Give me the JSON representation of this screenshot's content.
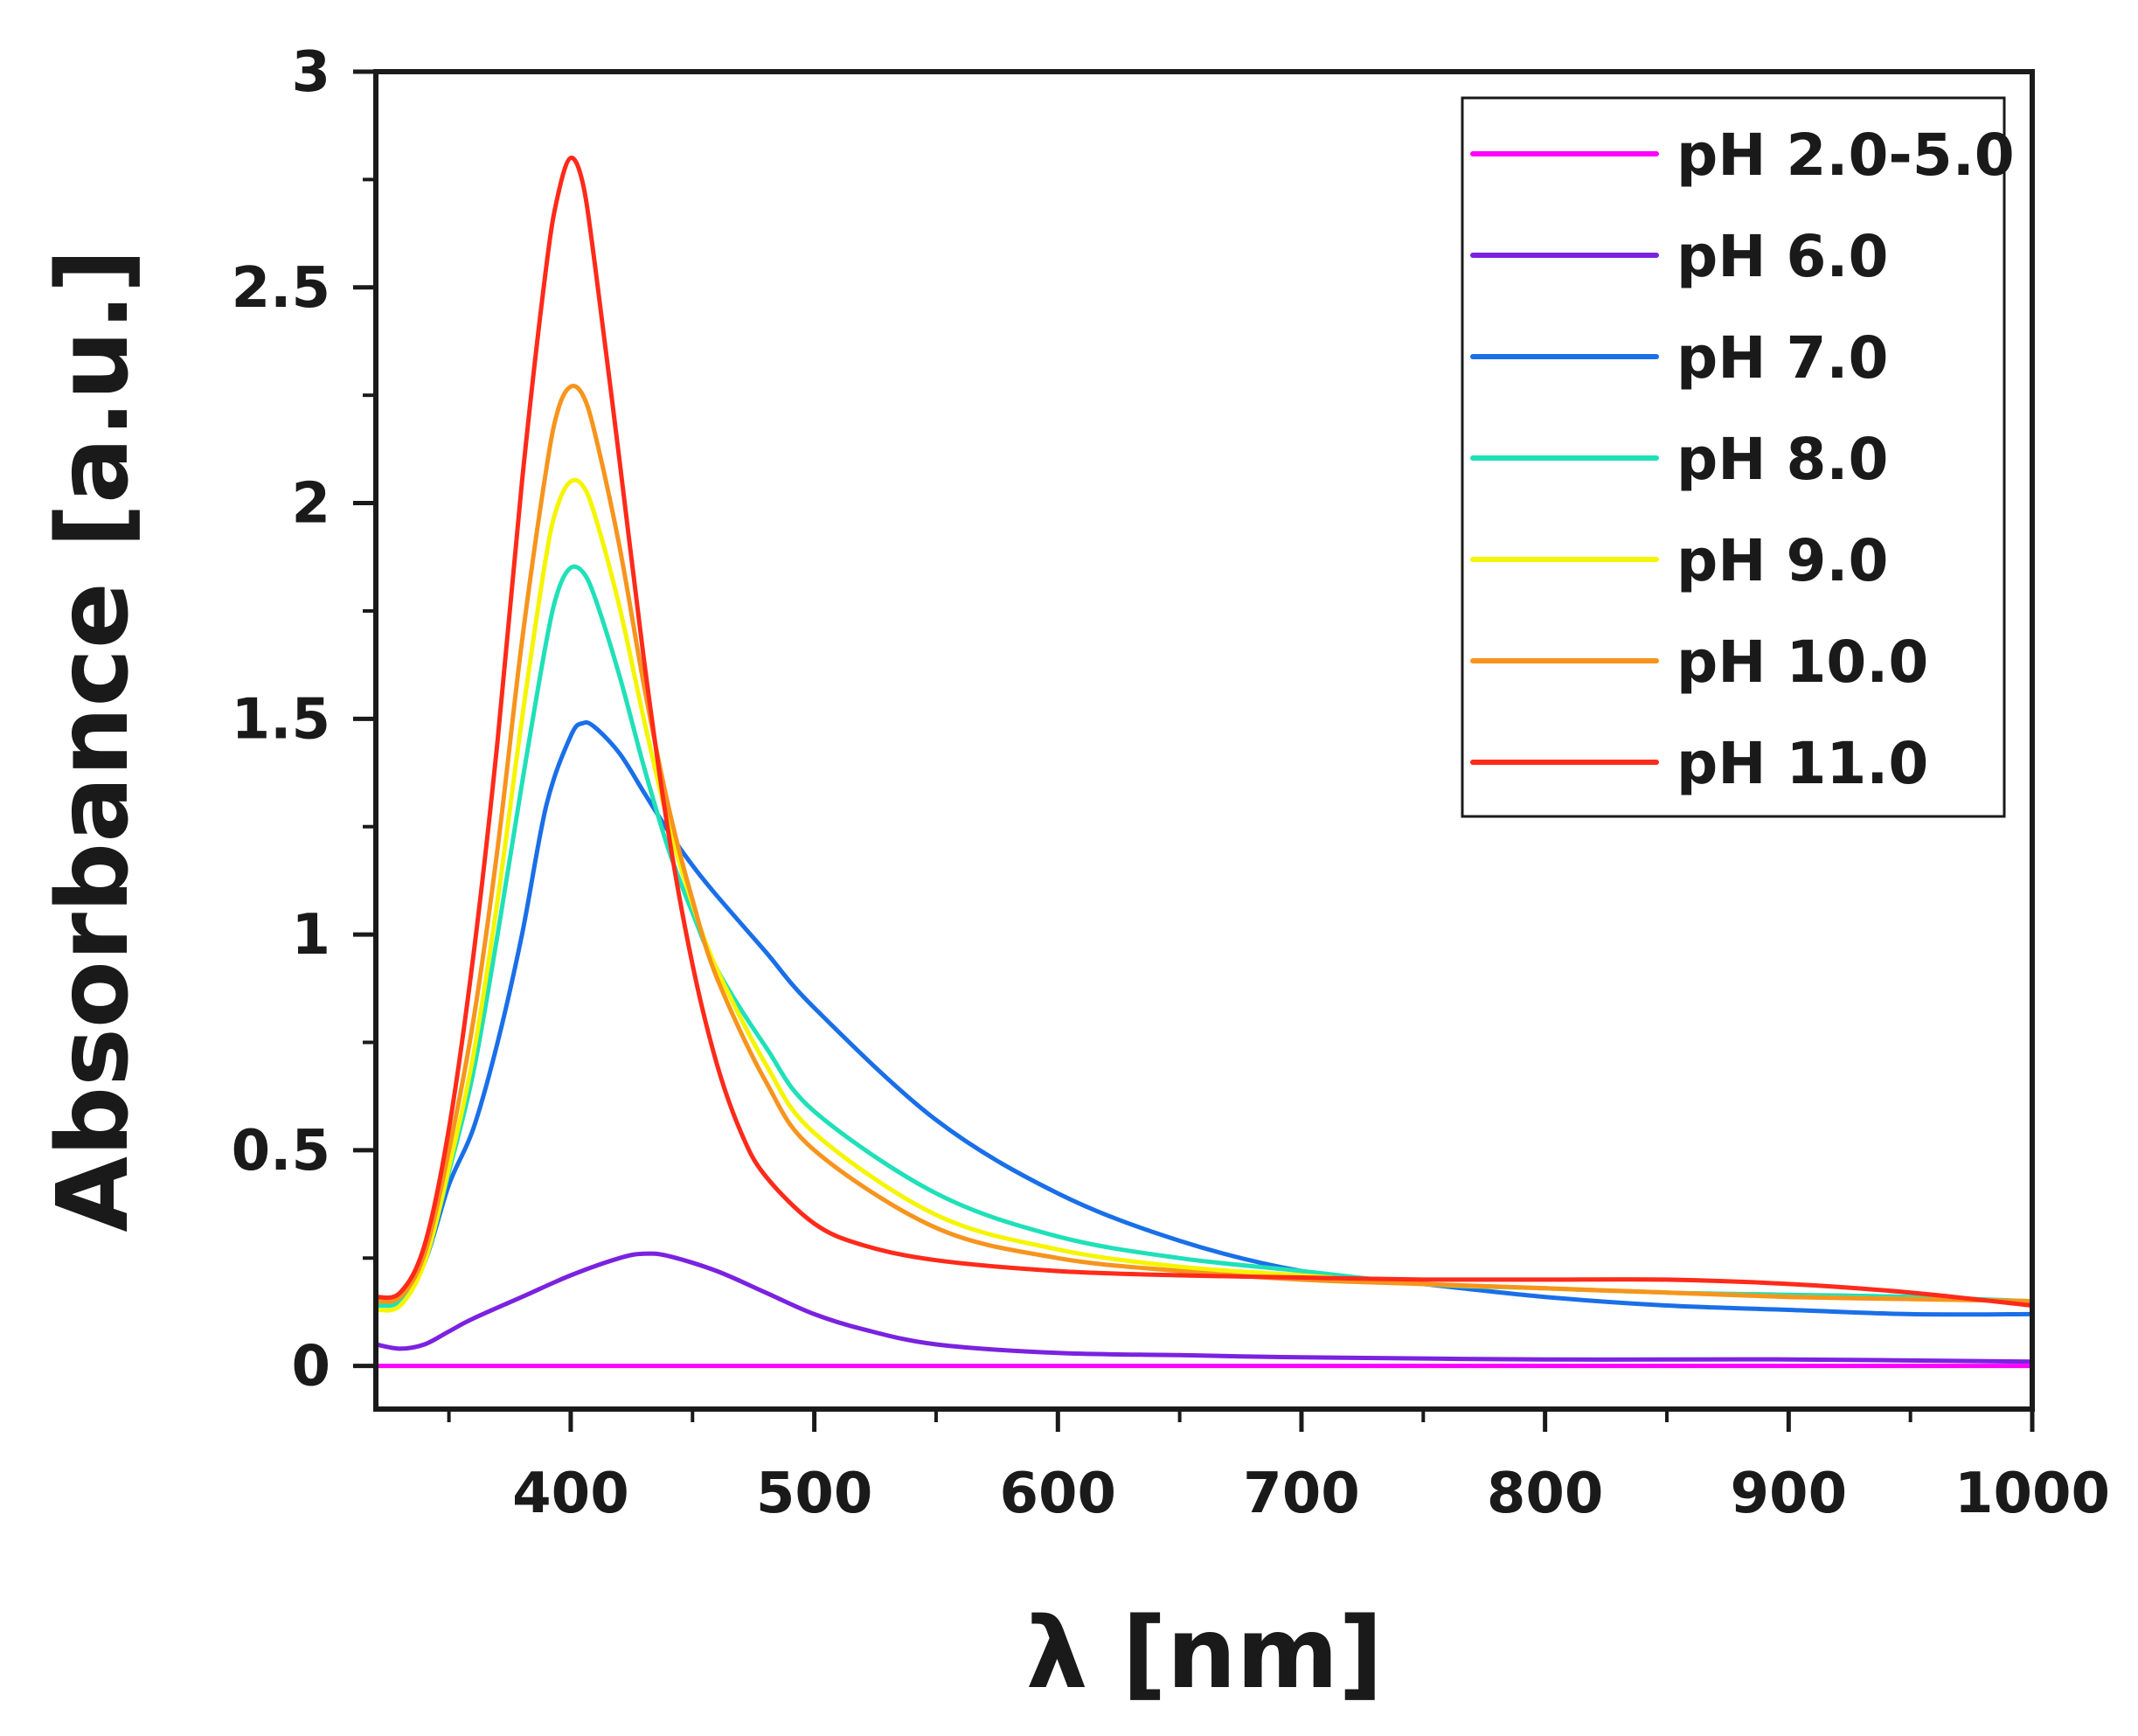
{
  "chart_data": {
    "type": "line",
    "title": "",
    "xlabel": "λ [nm]",
    "ylabel": "Absorbance [a.u.]",
    "xlim": [
      320,
      1000
    ],
    "ylim": [
      -0.1,
      3
    ],
    "xticks": [
      400,
      500,
      600,
      700,
      800,
      900,
      1000
    ],
    "xtick_labels": [
      "400",
      "500",
      "600",
      "700",
      "800",
      "900",
      "1000"
    ],
    "xminor": [
      350,
      450,
      550,
      650,
      750,
      850,
      950
    ],
    "yticks": [
      0,
      0.5,
      1,
      1.5,
      2,
      2.5,
      3
    ],
    "ytick_labels": [
      "0",
      "0.5",
      "1",
      "1.5",
      "2",
      "2.5",
      "3"
    ],
    "yminor": [
      0.25,
      0.75,
      1.25,
      1.75,
      2.25,
      2.75
    ],
    "legend_position": "top-right",
    "series": [
      {
        "name": "pH 2.0-5.0",
        "color": "#ff00ff",
        "x": [
          320,
          1000
        ],
        "y": [
          0.0,
          0.0
        ]
      },
      {
        "name": "pH 6.0",
        "color": "#7b22e0",
        "x": [
          320,
          330,
          340,
          350,
          360,
          380,
          400,
          420,
          430,
          440,
          460,
          480,
          500,
          520,
          550,
          600,
          650,
          700,
          800,
          900,
          1000
        ],
        "y": [
          0.05,
          0.04,
          0.05,
          0.08,
          0.11,
          0.16,
          0.21,
          0.25,
          0.26,
          0.255,
          0.22,
          0.17,
          0.12,
          0.085,
          0.05,
          0.03,
          0.025,
          0.02,
          0.015,
          0.015,
          0.01
        ]
      },
      {
        "name": "pH 7.0",
        "color": "#1a6fe8",
        "x": [
          320,
          330,
          340,
          350,
          360,
          370,
          380,
          390,
          400,
          405,
          410,
          420,
          430,
          440,
          450,
          460,
          480,
          500,
          550,
          600,
          650,
          700,
          750,
          800,
          850,
          900,
          950,
          1000
        ],
        "y": [
          0.16,
          0.16,
          0.24,
          0.42,
          0.55,
          0.75,
          1.0,
          1.3,
          1.46,
          1.49,
          1.48,
          1.42,
          1.33,
          1.24,
          1.16,
          1.09,
          0.96,
          0.83,
          0.57,
          0.4,
          0.29,
          0.22,
          0.19,
          0.16,
          0.14,
          0.13,
          0.12,
          0.12
        ]
      },
      {
        "name": "pH 8.0",
        "color": "#20e0b8",
        "x": [
          320,
          330,
          340,
          350,
          360,
          370,
          380,
          390,
          395,
          400,
          405,
          410,
          420,
          430,
          440,
          450,
          460,
          480,
          500,
          550,
          600,
          650,
          700,
          750,
          800,
          850,
          900,
          950,
          1000
        ],
        "y": [
          0.14,
          0.15,
          0.24,
          0.45,
          0.68,
          1.0,
          1.35,
          1.68,
          1.8,
          1.85,
          1.84,
          1.78,
          1.6,
          1.39,
          1.2,
          1.05,
          0.92,
          0.74,
          0.59,
          0.4,
          0.3,
          0.25,
          0.22,
          0.19,
          0.18,
          0.17,
          0.165,
          0.16,
          0.15
        ]
      },
      {
        "name": "pH 9.0",
        "color": "#f5f500",
        "x": [
          320,
          330,
          340,
          350,
          360,
          370,
          380,
          390,
          395,
          400,
          405,
          410,
          420,
          430,
          440,
          450,
          460,
          480,
          500,
          550,
          600,
          650,
          700,
          750,
          800,
          850,
          900,
          950,
          1000
        ],
        "y": [
          0.13,
          0.14,
          0.24,
          0.46,
          0.72,
          1.08,
          1.5,
          1.88,
          2.0,
          2.05,
          2.04,
          1.97,
          1.76,
          1.5,
          1.26,
          1.07,
          0.92,
          0.7,
          0.54,
          0.35,
          0.27,
          0.23,
          0.21,
          0.19,
          0.18,
          0.17,
          0.16,
          0.155,
          0.15
        ]
      },
      {
        "name": "pH 10.0",
        "color": "#f7941d",
        "x": [
          320,
          330,
          340,
          350,
          360,
          370,
          380,
          390,
          395,
          400,
          405,
          410,
          420,
          430,
          440,
          450,
          460,
          480,
          500,
          550,
          600,
          650,
          700,
          750,
          800,
          850,
          900,
          950,
          1000
        ],
        "y": [
          0.15,
          0.16,
          0.26,
          0.5,
          0.8,
          1.2,
          1.68,
          2.08,
          2.22,
          2.27,
          2.25,
          2.16,
          1.9,
          1.58,
          1.3,
          1.08,
          0.9,
          0.66,
          0.5,
          0.32,
          0.25,
          0.22,
          0.2,
          0.19,
          0.18,
          0.17,
          0.16,
          0.155,
          0.15
        ]
      },
      {
        "name": "pH 11.0",
        "color": "#ff2a1a",
        "x": [
          320,
          330,
          340,
          350,
          360,
          370,
          380,
          390,
          395,
          400,
          405,
          410,
          420,
          430,
          440,
          450,
          460,
          470,
          480,
          500,
          520,
          550,
          600,
          650,
          700,
          750,
          800,
          850,
          900,
          950,
          1000
        ],
        "y": [
          0.16,
          0.17,
          0.28,
          0.55,
          0.95,
          1.45,
          2.05,
          2.55,
          2.72,
          2.8,
          2.74,
          2.55,
          2.1,
          1.64,
          1.24,
          0.93,
          0.7,
          0.54,
          0.44,
          0.33,
          0.28,
          0.245,
          0.22,
          0.21,
          0.205,
          0.2,
          0.2,
          0.2,
          0.19,
          0.17,
          0.14
        ]
      }
    ]
  }
}
